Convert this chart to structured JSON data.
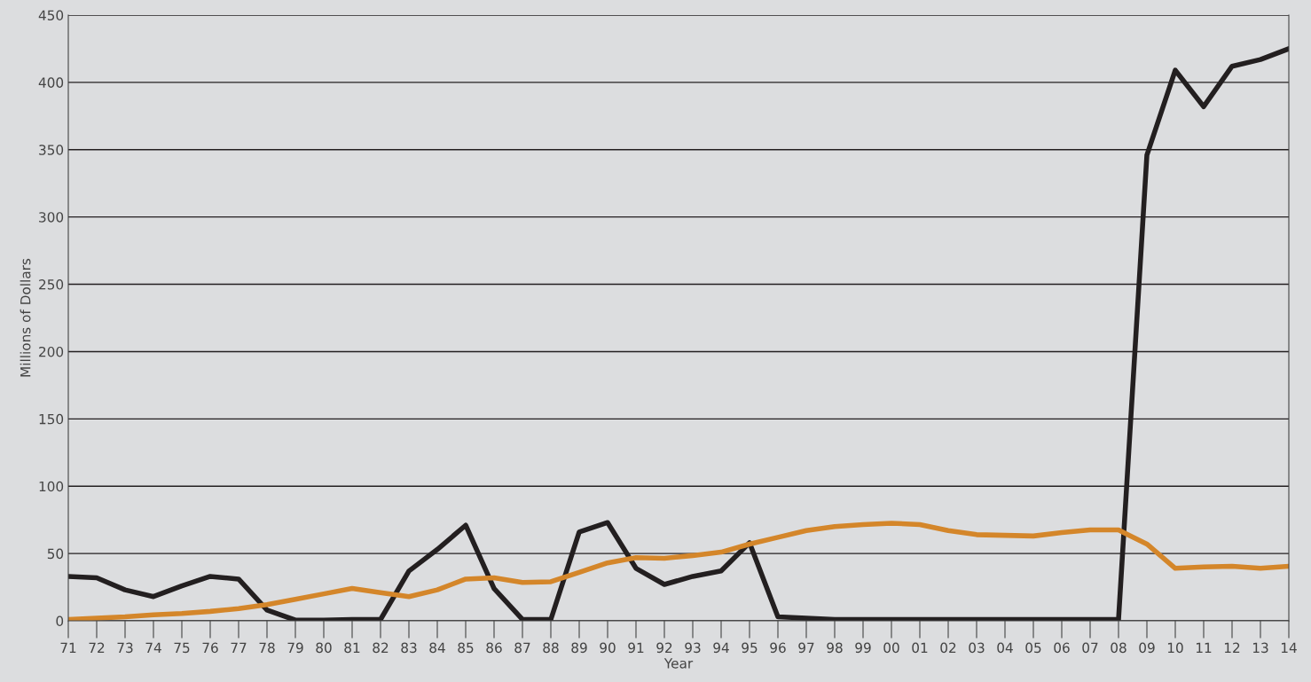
{
  "chart_data": {
    "type": "line",
    "xlabel": "Year",
    "ylabel": "Millions of Dollars",
    "categories": [
      "71",
      "72",
      "73",
      "74",
      "75",
      "76",
      "77",
      "78",
      "79",
      "80",
      "81",
      "82",
      "83",
      "84",
      "85",
      "86",
      "87",
      "88",
      "89",
      "90",
      "91",
      "92",
      "93",
      "94",
      "95",
      "96",
      "97",
      "98",
      "99",
      "00",
      "01",
      "02",
      "03",
      "04",
      "05",
      "06",
      "07",
      "08",
      "09",
      "10",
      "11",
      "12",
      "13",
      "14"
    ],
    "series": [
      {
        "color": "#231f20",
        "values": [
          33,
          32,
          23,
          18,
          26,
          33,
          31,
          8,
          0.5,
          0.5,
          1,
          1,
          37,
          53,
          71,
          24,
          1,
          1,
          66,
          73,
          39,
          27,
          33,
          37,
          58,
          3,
          2,
          1,
          1,
          1,
          1,
          1,
          1,
          1,
          1,
          1,
          1,
          1,
          346,
          409,
          382,
          412,
          417,
          425
        ]
      },
      {
        "color": "#d4862a",
        "values": [
          1,
          2,
          3,
          4.5,
          5.5,
          7,
          9,
          12,
          16,
          20,
          24,
          21,
          18,
          23,
          31,
          32,
          28.5,
          29,
          36,
          43,
          47,
          46.5,
          48.5,
          51,
          57,
          62,
          67,
          70,
          71.5,
          72.5,
          71.5,
          67,
          64,
          63.5,
          63,
          65.5,
          67.5,
          67.5,
          57,
          39,
          40,
          40.5,
          39,
          40.5
        ]
      }
    ],
    "ylim": [
      0,
      450
    ],
    "yticks": [
      0,
      50,
      100,
      150,
      200,
      250,
      300,
      350,
      400,
      450
    ],
    "grid": "y",
    "line_style": "solid"
  }
}
